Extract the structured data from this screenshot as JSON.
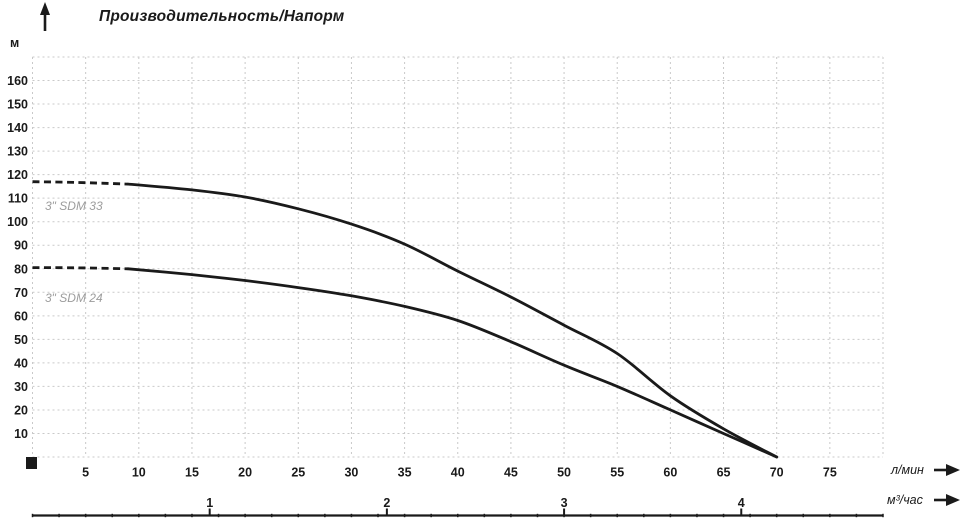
{
  "colors": {
    "curve": "#1a1a1a",
    "grid": "#c9c9c9",
    "text": "#1a1a1a",
    "series_label": "#9c9c9c"
  },
  "chart_data": {
    "type": "line",
    "title": "Производительность/Напорм",
    "grid": "dashed",
    "y_axis": {
      "unit": "м",
      "min": 0,
      "max": 170,
      "grid_step": 10,
      "ticks": [
        10,
        20,
        30,
        40,
        50,
        60,
        70,
        80,
        90,
        100,
        110,
        120,
        130,
        140,
        150,
        160
      ]
    },
    "x_axis": {
      "unit": "л/мин",
      "min": 0,
      "max": 80,
      "grid_step": 5,
      "ticks": [
        5,
        10,
        15,
        20,
        25,
        30,
        35,
        40,
        45,
        50,
        55,
        60,
        65,
        70,
        75
      ]
    },
    "x2_axis": {
      "unit": "м³/час",
      "ticks": [
        1,
        2,
        3,
        4
      ],
      "l_per_min_per_unit": 16.667
    },
    "series": [
      {
        "name": "3\" SDM 33",
        "dashed_points": [
          [
            0,
            117
          ],
          [
            4,
            116.7
          ],
          [
            9,
            116
          ]
        ],
        "points": [
          [
            9,
            116
          ],
          [
            15,
            113.5
          ],
          [
            20,
            110.5
          ],
          [
            25,
            105.5
          ],
          [
            30,
            99
          ],
          [
            35,
            90.5
          ],
          [
            40,
            79
          ],
          [
            45,
            68
          ],
          [
            50,
            56
          ],
          [
            55,
            44
          ],
          [
            60,
            26
          ],
          [
            65,
            12
          ],
          [
            70,
            0
          ]
        ]
      },
      {
        "name": "3\" SDM 24",
        "dashed_points": [
          [
            0,
            80.5
          ],
          [
            4,
            80.4
          ],
          [
            9,
            80
          ]
        ],
        "points": [
          [
            9,
            80
          ],
          [
            15,
            77.5
          ],
          [
            20,
            75
          ],
          [
            25,
            72
          ],
          [
            30,
            68.5
          ],
          [
            35,
            64
          ],
          [
            40,
            58
          ],
          [
            45,
            49
          ],
          [
            50,
            39
          ],
          [
            55,
            30
          ],
          [
            60,
            20
          ],
          [
            65,
            10
          ],
          [
            70,
            0
          ]
        ]
      }
    ]
  }
}
